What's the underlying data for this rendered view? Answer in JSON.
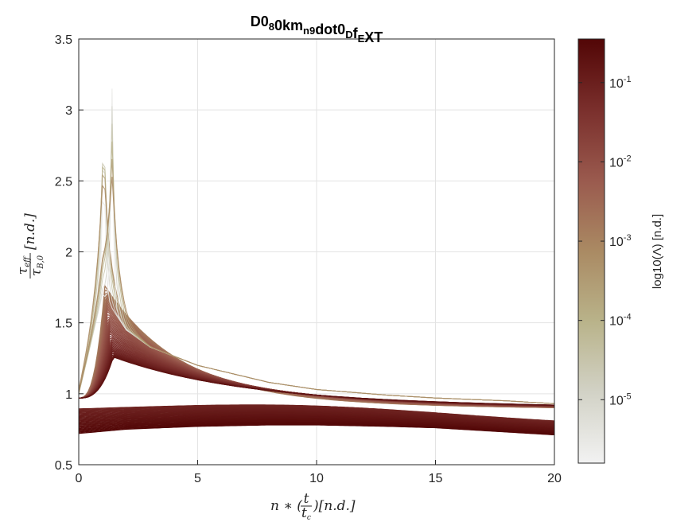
{
  "chart_data": {
    "type": "line",
    "title_parts": [
      {
        "t": "D0",
        "sub": false
      },
      {
        "t": "8",
        "sub": true
      },
      {
        "t": "0km",
        "sub": false
      },
      {
        "t": "n9",
        "sub": true
      },
      {
        "t": "dot0",
        "sub": false
      },
      {
        "t": "D",
        "sub": true
      },
      {
        "t": "f",
        "sub": false
      },
      {
        "t": "E",
        "sub": true
      },
      {
        "t": "XT",
        "sub": false
      }
    ],
    "xlabel": "n∗(t/t_c)[n.d.]",
    "ylabel": "τ_eff/τ_B,0 [n.d.]",
    "xlim": [
      0,
      20
    ],
    "ylim": [
      0.5,
      3.5
    ],
    "xticks": [
      0,
      5,
      10,
      15,
      20
    ],
    "yticks": [
      0.5,
      1,
      1.5,
      2,
      2.5,
      3,
      3.5
    ],
    "xtick_labels": [
      "0",
      "5",
      "10",
      "15",
      "20"
    ],
    "ytick_labels": [
      "0.5",
      "1",
      "1.5",
      "2",
      "2.5",
      "3",
      "3.5"
    ],
    "grid": true,
    "colorbar": {
      "label": "log10(Λ) [n.d.]",
      "scale": "log",
      "range_exponents": [
        -5.8,
        -0.45
      ],
      "tick_exponents": [
        -5,
        -4,
        -3,
        -2,
        -1
      ],
      "colors": [
        "#f2f2f2",
        "#d2d2c6",
        "#b9b38a",
        "#aa8a63",
        "#9a5a4e",
        "#7a2f2c",
        "#520606"
      ]
    },
    "series_description_note": "",
    "families": {
      "spike_peaks": [
        {
          "x": 1.05,
          "y": 3.05
        },
        {
          "x": 1.4,
          "y": 3.1
        }
      ],
      "envelope_upper": {
        "x": [
          0,
          1,
          2,
          3,
          5,
          8,
          10,
          13,
          15,
          18,
          20
        ],
        "y": [
          1.0,
          1.7,
          1.45,
          1.33,
          1.2,
          1.08,
          1.03,
          0.99,
          0.97,
          0.95,
          0.93
        ]
      },
      "envelope_lower": {
        "x": [
          0,
          2,
          5,
          8,
          10,
          13,
          15,
          18,
          20
        ],
        "y": [
          0.72,
          0.75,
          0.77,
          0.78,
          0.78,
          0.77,
          0.76,
          0.73,
          0.71
        ]
      }
    }
  }
}
